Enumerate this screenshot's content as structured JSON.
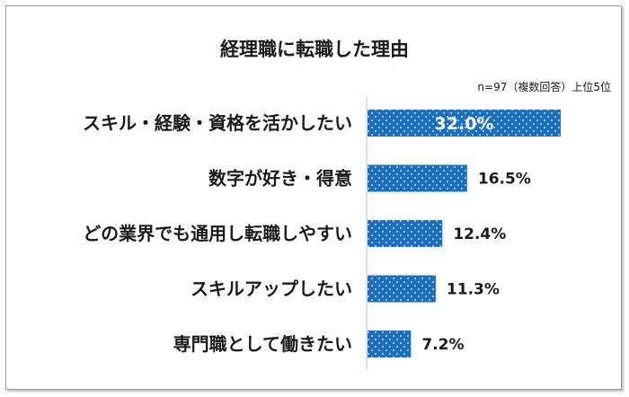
{
  "chart_data": {
    "type": "bar",
    "orientation": "horizontal",
    "title": "経理職に転職した理由",
    "note": "n=97（複数回答）上位5位",
    "categories": [
      "スキル・経験・資格を活かしたい",
      "数字が好き・得意",
      "どの業界でも通用し転職しやすい",
      "スキルアップしたい",
      "専門職として働きたい"
    ],
    "values": [
      32.0,
      16.5,
      12.4,
      11.3,
      7.2
    ],
    "value_labels": [
      "32.0%",
      "16.5%",
      "12.4%",
      "11.3%",
      "7.2%"
    ],
    "unit": "%",
    "xlim": [
      0,
      32
    ],
    "grid": false,
    "bar_color": "#1a6fc2",
    "dot_color": "#ffffff"
  }
}
